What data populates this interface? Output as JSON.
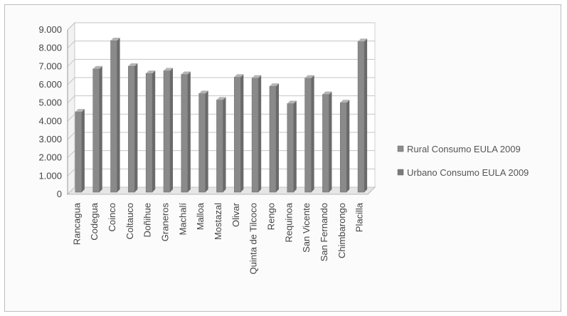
{
  "chart_data": {
    "type": "bar",
    "title": "",
    "xlabel": "",
    "ylabel": "",
    "ylim": [
      0,
      9000
    ],
    "yticks": [
      0,
      1000,
      2000,
      3000,
      4000,
      5000,
      6000,
      7000,
      8000,
      9000
    ],
    "ytick_labels": [
      "0",
      "1.000",
      "2.000",
      "3.000",
      "4.000",
      "5.000",
      "6.000",
      "7.000",
      "8.000",
      "9.000"
    ],
    "categories": [
      "Rancagua",
      "Codegua",
      "Coinco",
      "Coltauco",
      "Doñihue",
      "Graneros",
      "Machalí",
      "Malloa",
      "Mostazal",
      "Olivar",
      "Quinta de Tilcoco",
      "Rengo",
      "Requinoa",
      "San Vicente",
      "San Fernando",
      "Chimbarongo",
      "Placilla"
    ],
    "series": [
      {
        "name": "Rural Consumo EULA 2009",
        "color": "#8c8c8c",
        "values": [
          4400,
          6750,
          8300,
          6900,
          6500,
          6650,
          6450,
          5400,
          5050,
          6300,
          6250,
          5800,
          4850,
          6250,
          5350,
          4900,
          8250
        ]
      },
      {
        "name": "Urbano  Consumo EULA 2009",
        "color": "#7a7a7a",
        "values": [
          0,
          0,
          0,
          0,
          0,
          0,
          0,
          0,
          0,
          0,
          0,
          0,
          0,
          0,
          0,
          0,
          0
        ]
      }
    ],
    "grid": true,
    "legend_position": "right"
  }
}
